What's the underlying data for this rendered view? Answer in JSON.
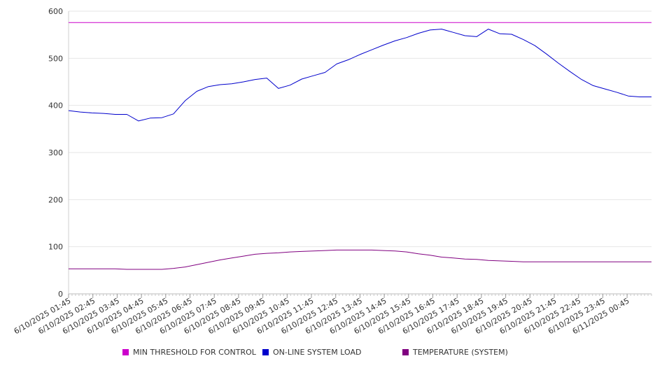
{
  "chart_data": {
    "type": "line",
    "title": "",
    "xlabel": "",
    "ylabel": "",
    "ylim": [
      0,
      600
    ],
    "yticks": [
      0,
      100,
      200,
      300,
      400,
      500,
      600
    ],
    "grid": true,
    "legend_position": "bottom",
    "x_tick_labels": [
      "6/10/2025 01:45",
      "6/10/2025 02:45",
      "6/10/2025 03:45",
      "6/10/2025 04:45",
      "6/10/2025 05:45",
      "6/10/2025 06:45",
      "6/10/2025 07:45",
      "6/10/2025 08:45",
      "6/10/2025 09:45",
      "6/10/2025 10:45",
      "6/10/2025 11:45",
      "6/10/2025 12:45",
      "6/10/2025 13:45",
      "6/10/2025 14:45",
      "6/10/2025 15:45",
      "6/10/2025 16:45",
      "6/10/2025 17:45",
      "6/10/2025 18:45",
      "6/10/2025 19:45",
      "6/10/2025 20:45",
      "6/10/2025 21:45",
      "6/10/2025 22:45",
      "6/10/2025 23:45",
      "6/11/2025 00:45"
    ],
    "x": [
      "01:45",
      "02:15",
      "02:45",
      "03:15",
      "03:45",
      "04:15",
      "04:45",
      "05:00",
      "05:15",
      "05:45",
      "06:15",
      "06:45",
      "07:15",
      "07:45",
      "08:15",
      "08:45",
      "09:15",
      "09:45",
      "09:50",
      "10:15",
      "10:45",
      "11:15",
      "11:45",
      "12:15",
      "12:45",
      "13:15",
      "13:45",
      "14:15",
      "14:45",
      "15:15",
      "15:45",
      "16:15",
      "16:45",
      "17:15",
      "17:45",
      "18:15",
      "18:45",
      "19:15",
      "19:45",
      "20:15",
      "20:30",
      "20:45",
      "21:15",
      "21:45",
      "22:15",
      "22:45",
      "23:15",
      "23:45",
      "00:15",
      "00:45",
      "01:15"
    ],
    "series": [
      {
        "name": "MIN THRESHOLD FOR CONTROL",
        "color": "#cc00cc",
        "values": [
          576,
          576,
          576,
          576,
          576,
          576,
          576,
          576,
          576,
          576,
          576,
          576,
          576,
          576,
          576,
          576,
          576,
          576,
          576,
          576,
          576,
          576,
          576,
          576,
          576,
          576,
          576,
          576,
          576,
          576,
          576,
          576,
          576,
          576,
          576,
          576,
          576,
          576,
          576,
          576,
          576,
          576,
          576,
          576,
          576,
          576,
          576,
          576,
          576,
          576,
          576
        ]
      },
      {
        "name": "ON-LINE SYSTEM LOAD",
        "color": "#0000cc",
        "values": [
          389,
          386,
          384,
          383,
          381,
          381,
          367,
          373,
          374,
          382,
          410,
          430,
          440,
          444,
          446,
          450,
          455,
          458,
          436,
          443,
          456,
          463,
          470,
          488,
          497,
          508,
          518,
          528,
          537,
          544,
          553,
          560,
          562,
          555,
          548,
          546,
          562,
          552,
          551,
          540,
          527,
          509,
          490,
          472,
          455,
          442,
          435,
          428,
          420,
          418,
          418
        ]
      },
      {
        "name": "TEMPERATURE (SYSTEM)",
        "color": "#800080",
        "values": [
          53,
          53,
          53,
          53,
          53,
          52,
          52,
          52,
          52,
          54,
          57,
          62,
          67,
          72,
          76,
          80,
          84,
          86,
          87,
          89,
          90,
          91,
          92,
          93,
          93,
          93,
          93,
          92,
          91,
          89,
          85,
          82,
          78,
          76,
          74,
          73,
          71,
          70,
          69,
          68,
          68,
          68,
          68,
          68,
          68,
          68,
          68,
          68,
          68,
          68,
          68
        ]
      }
    ]
  }
}
